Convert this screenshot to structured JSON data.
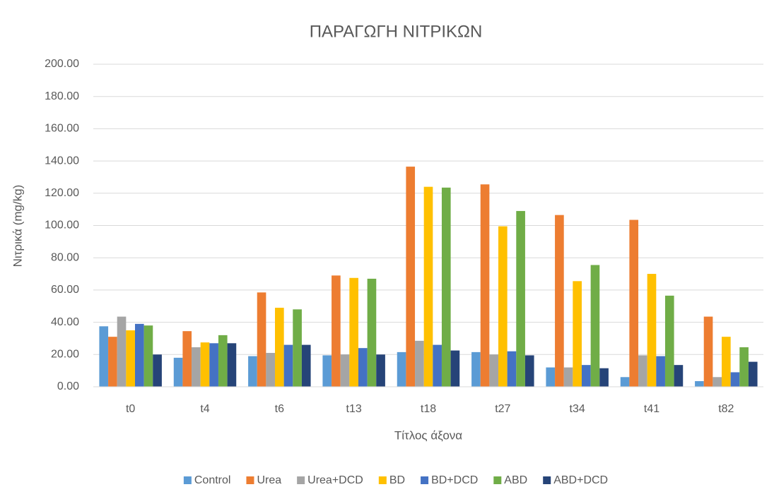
{
  "chart_data": {
    "type": "bar",
    "title": "ΠΑΡΑΓΩΓΗ ΝΙΤΡΙΚΩΝ",
    "y_label": "Νιτρικά (mg/kg)",
    "x_label": "Τίτλος άξονα",
    "categories": [
      "t0",
      "t4",
      "t6",
      "t13",
      "t18",
      "t27",
      "t34",
      "t41",
      "t82"
    ],
    "series": [
      {
        "name": "Control",
        "color": "#5b9bd5",
        "values": [
          37.5,
          18,
          19,
          19.5,
          21.5,
          21.5,
          12,
          6,
          3.5
        ]
      },
      {
        "name": "Urea",
        "color": "#ed7d31",
        "values": [
          31,
          34.5,
          58.5,
          69,
          136.5,
          125.5,
          106.5,
          103.5,
          43.5
        ]
      },
      {
        "name": "Urea+DCD",
        "color": "#a5a5a5",
        "values": [
          43.5,
          24.5,
          21,
          20,
          28.5,
          20,
          12,
          19.5,
          6
        ]
      },
      {
        "name": "BD",
        "color": "#ffc000",
        "values": [
          35,
          27.5,
          49,
          67.5,
          124,
          99.5,
          65.5,
          70,
          31
        ]
      },
      {
        "name": "BD+DCD",
        "color": "#4472c4",
        "values": [
          39,
          27,
          26,
          24,
          26,
          22,
          13.5,
          19,
          9
        ]
      },
      {
        "name": "ABD",
        "color": "#70ad47",
        "values": [
          38,
          32,
          48,
          67,
          123.5,
          109,
          75.5,
          56.5,
          24.5
        ]
      },
      {
        "name": "ABD+DCD",
        "color": "#264478",
        "values": [
          20,
          27,
          26,
          20,
          22.5,
          19.5,
          11.5,
          13.5,
          15.5
        ]
      }
    ],
    "ylim": [
      0,
      200
    ],
    "yticks": [
      {
        "value": 0,
        "label": "0.00"
      },
      {
        "value": 20,
        "label": "20.00"
      },
      {
        "value": 40,
        "label": "40.00"
      },
      {
        "value": 60,
        "label": "60.00"
      },
      {
        "value": 80,
        "label": "80.00"
      },
      {
        "value": 100,
        "label": "100.00"
      },
      {
        "value": 120,
        "label": "120.00"
      },
      {
        "value": 140,
        "label": "140.00"
      },
      {
        "value": 160,
        "label": "160.00"
      },
      {
        "value": 180,
        "label": "180.00"
      },
      {
        "value": 200,
        "label": "200.00"
      }
    ],
    "grid": true,
    "legend": "bottom"
  }
}
